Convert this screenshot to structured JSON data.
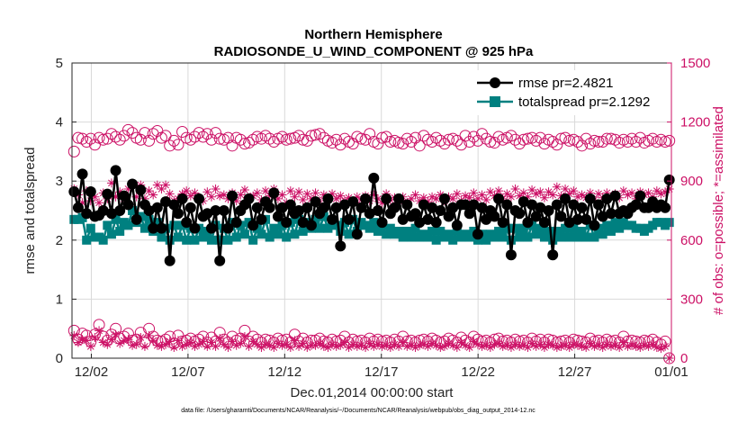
{
  "chart_data": {
    "type": "line",
    "title": "Northern Hemisphere",
    "subtitle": "RADIOSONDE_U_WIND_COMPONENT @ 925 hPa",
    "xlabel": "Dec.01,2014 00:00:00 start",
    "ylabel_left": "rmse and totalspread",
    "ylabel_right": "# of obs: o=possible; *=assimilated",
    "footnote": "data file: /Users/gharamti/Documents/NCAR/Reanalysis/~/Documents/NCAR/Reanalysis/webpub/obs_diag_output_2014-12.nc",
    "xlim": [
      0,
      31
    ],
    "ylim_left": [
      0,
      5
    ],
    "ylim_right": [
      0,
      1500
    ],
    "x_ticks": [
      1,
      6,
      11,
      16,
      21,
      26,
      31
    ],
    "x_tick_labels": [
      "12/02",
      "12/07",
      "12/12",
      "12/17",
      "12/22",
      "12/27",
      "01/01"
    ],
    "y_ticks_left": [
      0,
      1,
      2,
      3,
      4,
      5
    ],
    "y_ticks_right": [
      0,
      300,
      600,
      900,
      1200,
      1500
    ],
    "colors": {
      "rmse": "#000000",
      "spread": "#008080",
      "obs": "#cc1166",
      "grid": "#d9d9d9"
    },
    "legend": [
      "rmse pr=2.4821",
      "totalspread pr=2.1292"
    ],
    "series": [
      {
        "name": "rmse",
        "axis": "left",
        "values": [
          2.82,
          2.55,
          3.12,
          2.45,
          2.82,
          2.4,
          2.42,
          2.5,
          2.78,
          2.45,
          3.18,
          2.5,
          2.75,
          2.6,
          2.95,
          2.35,
          2.85,
          2.6,
          2.5,
          2.2,
          2.55,
          2.2,
          2.65,
          1.65,
          2.6,
          2.45,
          2.7,
          2.3,
          2.55,
          2.2,
          2.7,
          2.4,
          2.45,
          2.2,
          2.5,
          1.65,
          2.5,
          2.2,
          2.75,
          2.3,
          2.5,
          2.6,
          2.7,
          2.25,
          2.55,
          2.35,
          2.65,
          2.55,
          2.8,
          2.4,
          2.55,
          2.3,
          2.6,
          2.45,
          2.5,
          2.3,
          2.55,
          2.25,
          2.65,
          2.45,
          2.55,
          2.7,
          2.35,
          2.55,
          1.9,
          2.6,
          2.35,
          2.65,
          2.1,
          2.55,
          2.7,
          2.45,
          3.05,
          2.5,
          2.3,
          2.7,
          2.45,
          2.55,
          2.7,
          2.35,
          2.6,
          2.4,
          2.45,
          2.3,
          2.6,
          2.35,
          2.55,
          2.3,
          2.5,
          2.7,
          2.4,
          2.55,
          2.25,
          2.6,
          2.6,
          2.45,
          2.6,
          2.1,
          2.55,
          2.35,
          2.5,
          2.4,
          2.7,
          2.3,
          2.6,
          1.75,
          2.5,
          2.45,
          2.65,
          2.3,
          2.6,
          2.4,
          2.55,
          2.3,
          2.5,
          1.75,
          2.6,
          2.4,
          2.7,
          2.3,
          2.6,
          2.35,
          2.55,
          2.35,
          2.7,
          2.25,
          2.6,
          2.4,
          2.7,
          2.45,
          2.75,
          2.45,
          2.5,
          2.45,
          2.55,
          2.6,
          2.75,
          2.55,
          2.55,
          2.65,
          2.55,
          2.6,
          2.55,
          3.02
        ]
      },
      {
        "name": "totalspread",
        "axis": "left",
        "values": [
          2.35,
          2.35,
          2.38,
          2.0,
          2.2,
          2.05,
          2.05,
          2.0,
          2.25,
          2.1,
          2.35,
          2.15,
          2.3,
          2.25,
          2.5,
          2.3,
          2.4,
          2.2,
          2.35,
          2.15,
          2.3,
          2.05,
          2.2,
          2.0,
          2.25,
          2.05,
          2.25,
          2.0,
          2.2,
          2.0,
          2.2,
          2.05,
          2.15,
          2.0,
          2.25,
          2.0,
          2.2,
          2.0,
          2.3,
          2.05,
          2.25,
          2.1,
          2.3,
          2.0,
          2.2,
          2.1,
          2.35,
          2.05,
          2.2,
          2.1,
          2.25,
          2.05,
          2.3,
          2.1,
          2.35,
          2.15,
          2.3,
          2.2,
          2.35,
          2.2,
          2.4,
          2.2,
          2.3,
          2.25,
          2.15,
          2.3,
          2.1,
          2.35,
          2.15,
          2.3,
          2.25,
          2.2,
          2.3,
          2.15,
          2.25,
          2.1,
          2.2,
          2.1,
          2.15,
          2.05,
          2.15,
          2.05,
          2.2,
          2.05,
          2.1,
          2.05,
          2.15,
          2.0,
          2.15,
          2.05,
          2.1,
          2.0,
          2.15,
          2.05,
          2.1,
          2.05,
          2.15,
          2.0,
          2.1,
          2.0,
          2.1,
          2.05,
          2.15,
          2.05,
          2.2,
          2.0,
          2.2,
          2.05,
          2.2,
          2.05,
          2.25,
          2.1,
          2.2,
          2.05,
          2.15,
          2.0,
          2.15,
          2.05,
          2.2,
          2.05,
          2.2,
          2.05,
          2.15,
          2.05,
          2.25,
          2.05,
          2.2,
          2.1,
          2.25,
          2.15,
          2.3,
          2.2,
          2.3,
          2.25,
          2.25,
          2.2,
          2.2,
          2.15,
          2.2,
          2.25,
          2.3,
          2.3,
          2.25,
          2.3
        ]
      },
      {
        "name": "possible",
        "axis": "right",
        "values": [
          1050,
          1120,
          1115,
          1100,
          1115,
          1085,
          1120,
          1110,
          1115,
          1140,
          1125,
          1110,
          1130,
          1160,
          1145,
          1120,
          1110,
          1145,
          1105,
          1140,
          1155,
          1120,
          1130,
          1080,
          1105,
          1085,
          1150,
          1120,
          1110,
          1125,
          1145,
          1125,
          1140,
          1110,
          1145,
          1115,
          1110,
          1120,
          1080,
          1120,
          1110,
          1090,
          1095,
          1110,
          1125,
          1115,
          1130,
          1115,
          1100,
          1115,
          1125,
          1110,
          1115,
          1120,
          1130,
          1110,
          1105,
          1130,
          1135,
          1140,
          1120,
          1105,
          1095,
          1110,
          1085,
          1115,
          1100,
          1090,
          1125,
          1115,
          1110,
          1140,
          1100,
          1090,
          1120,
          1125,
          1100,
          1105,
          1095,
          1090,
          1115,
          1100,
          1120,
          1080,
          1130,
          1110,
          1100,
          1120,
          1105,
          1090,
          1110,
          1115,
          1105,
          1085,
          1130,
          1100,
          1125,
          1105,
          1140,
          1115,
          1100,
          1095,
          1125,
          1110,
          1120,
          1130,
          1110,
          1090,
          1110,
          1115,
          1120,
          1105,
          1120,
          1090,
          1110,
          1100,
          1085,
          1115,
          1120,
          1105,
          1110,
          1100,
          1080,
          1115,
          1090,
          1105,
          1100,
          1100,
          1115,
          1115,
          1110,
          1095,
          1110,
          1100,
          1115,
          1100,
          1120,
          1095,
          1105,
          1115,
          1100,
          1110,
          1100,
          1105
        ]
      },
      {
        "name": "assimilated",
        "axis": "right",
        "values": [
          860,
          830,
          790,
          850,
          800,
          820,
          790,
          840,
          810,
          890,
          820,
          845,
          810,
          860,
          880,
          820,
          880,
          810,
          850,
          830,
          880,
          860,
          880,
          835,
          800,
          810,
          835,
          850,
          825,
          840,
          815,
          800,
          845,
          820,
          860,
          825,
          830,
          810,
          840,
          800,
          830,
          855,
          810,
          825,
          840,
          805,
          850,
          825,
          860,
          810,
          830,
          790,
          850,
          820,
          845,
          805,
          835,
          810,
          840,
          800,
          830,
          815,
          835,
          810,
          825,
          800,
          815,
          790,
          820,
          805,
          825,
          800,
          830,
          810,
          790,
          835,
          805,
          815,
          800,
          820,
          790,
          810,
          830,
          800,
          815,
          795,
          820,
          810,
          830,
          800,
          820,
          810,
          835,
          800,
          825,
          815,
          840,
          810,
          830,
          805,
          845,
          825,
          850,
          810,
          835,
          820,
          860,
          825,
          840,
          820,
          855,
          835,
          845,
          815,
          845,
          830,
          870,
          825,
          860,
          835,
          850,
          820,
          830,
          815,
          840,
          805,
          835,
          815,
          840,
          820,
          835,
          815,
          850,
          830,
          840,
          810,
          845,
          830,
          840,
          820,
          850,
          835,
          845,
          860
        ]
      },
      {
        "name": "possible_lower",
        "axis": "right",
        "values": [
          140,
          95,
          125,
          115,
          85,
          120,
          170,
          110,
          90,
          120,
          150,
          100,
          110,
          125,
          90,
          95,
          130,
          80,
          150,
          110,
          90,
          85,
          95,
          110,
          75,
          115,
          85,
          90,
          100,
          85,
          95,
          110,
          80,
          105,
          85,
          130,
          95,
          80,
          110,
          90,
          100,
          140,
          85,
          110,
          95,
          80,
          95,
          90,
          80,
          100,
          90,
          95,
          80,
          120,
          85,
          100,
          80,
          90,
          90,
          100,
          85,
          80,
          95,
          85,
          90,
          110,
          80,
          95,
          85,
          90,
          80,
          100,
          85,
          95,
          85,
          90,
          80,
          95,
          85,
          110,
          85,
          90,
          80,
          90,
          95,
          85,
          100,
          90,
          80,
          85,
          100,
          90,
          80,
          105,
          90,
          80,
          110,
          95,
          85,
          90,
          80,
          95,
          100,
          85,
          90,
          80,
          95,
          85,
          90,
          80,
          100,
          85,
          95,
          80,
          95,
          90,
          80,
          85,
          90,
          80,
          95,
          90,
          85,
          80,
          100,
          85,
          90,
          80,
          95,
          85,
          90,
          80,
          110,
          85,
          90,
          85,
          80,
          90,
          85,
          95,
          80,
          70,
          85,
          0
        ]
      },
      {
        "name": "assimilated_lower",
        "axis": "right",
        "values": [
          115,
          80,
          95,
          90,
          60,
          105,
          140,
          80,
          70,
          95,
          120,
          75,
          90,
          95,
          65,
          70,
          105,
          60,
          115,
          90,
          65,
          60,
          70,
          85,
          55,
          90,
          60,
          70,
          80,
          60,
          70,
          85,
          60,
          80,
          60,
          100,
          70,
          55,
          85,
          65,
          75,
          110,
          60,
          85,
          70,
          55,
          70,
          65,
          55,
          75,
          65,
          70,
          55,
          90,
          60,
          75,
          55,
          65,
          65,
          75,
          60,
          55,
          70,
          60,
          65,
          80,
          55,
          70,
          60,
          65,
          55,
          75,
          60,
          70,
          60,
          65,
          55,
          70,
          60,
          80,
          60,
          65,
          55,
          65,
          70,
          60,
          75,
          65,
          55,
          60,
          75,
          65,
          55,
          80,
          65,
          55,
          85,
          70,
          60,
          65,
          55,
          70,
          75,
          60,
          65,
          55,
          70,
          60,
          65,
          55,
          75,
          60,
          70,
          55,
          70,
          65,
          55,
          60,
          65,
          55,
          70,
          65,
          60,
          55,
          75,
          60,
          65,
          55,
          70,
          60,
          65,
          55,
          80,
          60,
          65,
          60,
          55,
          65,
          60,
          70,
          55,
          50,
          60,
          0
        ]
      }
    ]
  }
}
